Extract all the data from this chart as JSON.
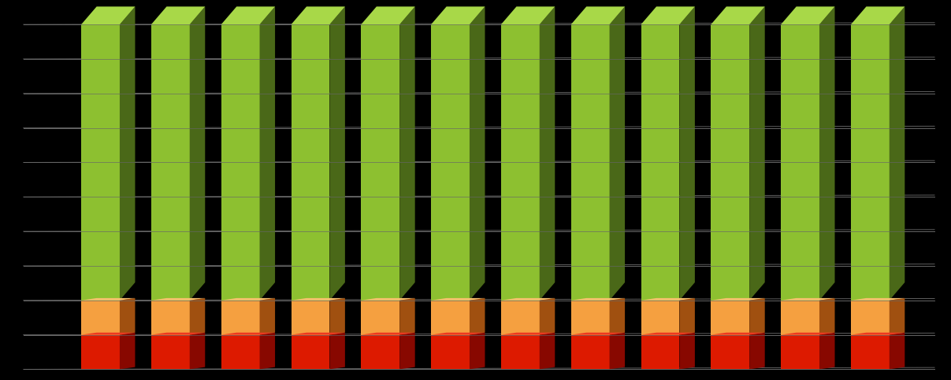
{
  "n_bars": 12,
  "background_color": "#000000",
  "grid_color": "#666666",
  "bar_face_green": "#8DC030",
  "bar_side_green": "#4A6818",
  "bar_top_green": "#A8D848",
  "bar_face_orange": "#F5A040",
  "bar_side_orange": "#A05010",
  "bar_top_orange": "#F8C070",
  "bar_face_red": "#DD1A00",
  "bar_side_red": "#880800",
  "bar_top_red": "#EE3820",
  "values_green": [
    80,
    80,
    80,
    80,
    80,
    80,
    80,
    80,
    80,
    80,
    80,
    80
  ],
  "values_orange": [
    10,
    10,
    10,
    10,
    10,
    10,
    10,
    10,
    10,
    10,
    10,
    10
  ],
  "values_red": [
    10,
    10,
    10,
    10,
    10,
    10,
    10,
    10,
    10,
    10,
    10,
    10
  ],
  "total": 100,
  "n_gridlines": 10,
  "chart_area_color": "#000000"
}
